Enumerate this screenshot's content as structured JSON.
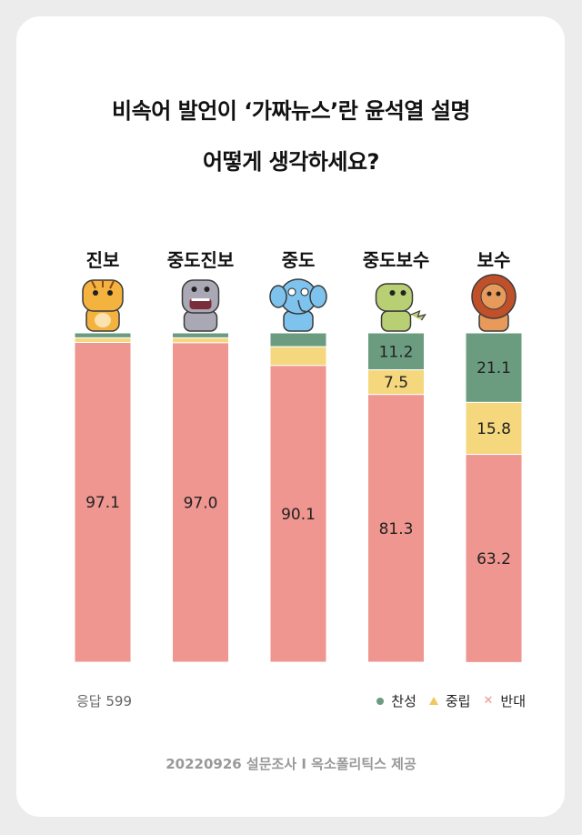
{
  "title_line1": "비속어 발언이 ‘가짜뉴스’란 윤석열 설명",
  "title_line2": "어떻게 생각하세요?",
  "respondents": "응답 599",
  "source": "20220926 설문조사 I 옥소폴리틱스 제공",
  "colors": {
    "agree": "#6b9c80",
    "neutral": "#f5d77e",
    "oppose": "#ee968f",
    "card": "#ffffff",
    "bg": "#ececec"
  },
  "icons": [
    "tiger-icon",
    "hippo-icon",
    "elephant-icon",
    "dinosaur-icon",
    "lion-icon"
  ],
  "legend": [
    {
      "label": "찬성",
      "marker": "●",
      "color": "#6b9c80"
    },
    {
      "label": "중립",
      "marker": "▲",
      "color": "#f0c75e"
    },
    {
      "label": "반대",
      "marker": "✕",
      "color": "#ee968f"
    }
  ],
  "chart_data": {
    "type": "bar",
    "stacked": true,
    "categories": [
      "진보",
      "중도진보",
      "중도",
      "중도보수",
      "보수"
    ],
    "series": [
      {
        "name": "찬성",
        "values": [
          1.5,
          1.5,
          4.2,
          11.2,
          21.1
        ]
      },
      {
        "name": "중립",
        "values": [
          1.4,
          1.5,
          5.7,
          7.5,
          15.8
        ]
      },
      {
        "name": "반대",
        "values": [
          97.1,
          97.0,
          90.1,
          81.3,
          63.2
        ]
      }
    ],
    "labels": [
      [
        "",
        "",
        "97.1"
      ],
      [
        "",
        "",
        "97.0"
      ],
      [
        "",
        "",
        "90.1"
      ],
      [
        "11.2",
        "7.5",
        "81.3"
      ],
      [
        "21.1",
        "15.8",
        "63.2"
      ]
    ],
    "ylim": [
      0,
      100
    ],
    "grid": false,
    "legend_position": "bottom-right"
  }
}
